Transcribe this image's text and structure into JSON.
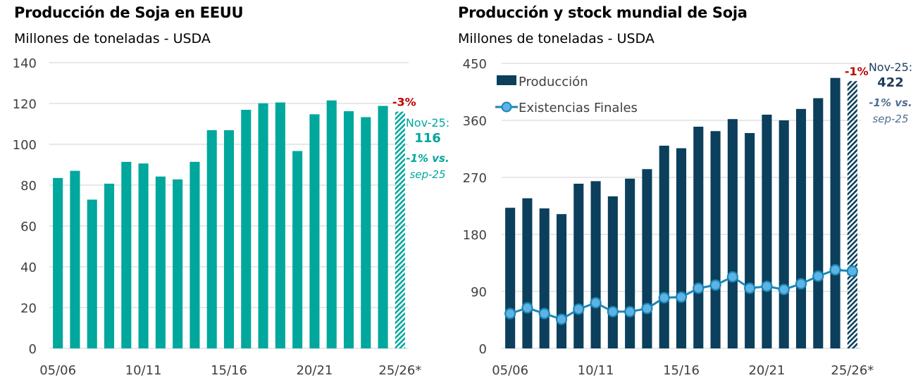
{
  "colors": {
    "us_bar": "#00A79D",
    "world_bar": "#0B3F5C",
    "stock_line": "#1A86B8",
    "stock_marker": "#5DB3E4",
    "negative": "#C00000",
    "grid": "#D9D9D9",
    "axis_text": "#404040",
    "world_note": "#4F6F93",
    "world_note_dark": "#1F3D5A"
  },
  "chart_data": [
    {
      "type": "bar",
      "title": "Producción de Soja en EEUU",
      "subtitle": "Millones de toneladas - USDA",
      "xlabel": "",
      "ylabel": "",
      "ylim": [
        0,
        140
      ],
      "yticks": [
        "0",
        "20",
        "40",
        "60",
        "80",
        "100",
        "120",
        "140"
      ],
      "ytick_values": [
        0,
        20,
        40,
        60,
        80,
        100,
        120,
        140
      ],
      "grid": true,
      "categories": [
        "05/06",
        "06/07",
        "07/08",
        "08/09",
        "09/10",
        "10/11",
        "11/12",
        "12/13",
        "13/14",
        "14/15",
        "15/16",
        "16/17",
        "17/18",
        "18/19",
        "19/20",
        "20/21",
        "21/22",
        "22/23",
        "23/24",
        "24/25",
        "25/26*"
      ],
      "xtick_labels": [
        "05/06",
        "10/11",
        "15/16",
        "20/21",
        "25/26*"
      ],
      "xtick_indices": [
        0,
        5,
        10,
        15,
        20
      ],
      "series": [
        {
          "name": "Producción",
          "values": [
            83.5,
            87.0,
            72.9,
            80.7,
            91.4,
            90.6,
            84.2,
            82.8,
            91.4,
            106.9,
            106.9,
            116.9,
            120.1,
            120.5,
            96.7,
            114.7,
            121.5,
            116.2,
            113.3,
            118.8,
            116.0
          ]
        }
      ],
      "projected_index": 20,
      "change_label": "-3%",
      "note": {
        "line1": "Nov-25:",
        "value": "116",
        "line3": "-1% vs.",
        "line4": "sep-25"
      }
    },
    {
      "type": "bar",
      "title": "Producción y stock mundial de Soja",
      "subtitle": "Millones de toneladas - USDA",
      "xlabel": "",
      "ylabel": "",
      "ylim": [
        0,
        450
      ],
      "yticks": [
        "0",
        "90",
        "180",
        "270",
        "360",
        "450"
      ],
      "ytick_values": [
        0,
        90,
        180,
        270,
        360,
        450
      ],
      "grid": true,
      "legend_position": "top-left",
      "categories": [
        "05/06",
        "06/07",
        "07/08",
        "08/09",
        "09/10",
        "10/11",
        "11/12",
        "12/13",
        "13/14",
        "14/15",
        "15/16",
        "16/17",
        "17/18",
        "18/19",
        "19/20",
        "20/21",
        "21/22",
        "22/23",
        "23/24",
        "24/25",
        "25/26*"
      ],
      "xtick_labels": [
        "05/06",
        "10/11",
        "15/16",
        "20/21",
        "25/26*"
      ],
      "xtick_indices": [
        0,
        5,
        10,
        15,
        20
      ],
      "series": [
        {
          "name": "Producción",
          "type": "bar",
          "values": [
            222,
            237,
            221,
            212,
            260,
            264,
            240,
            268,
            283,
            320,
            316,
            350,
            343,
            362,
            340,
            369,
            360,
            378,
            395,
            427,
            422
          ]
        },
        {
          "name": "Existencias  Finales",
          "type": "line",
          "values": [
            55,
            64,
            55,
            46,
            62,
            72,
            58,
            58,
            63,
            80,
            81,
            95,
            100,
            113,
            95,
            98,
            93,
            102,
            114,
            124,
            122
          ]
        }
      ],
      "projected_index": 20,
      "change_label": "-1%",
      "note": {
        "line1": "Nov-25:",
        "value": "422",
        "line3": "-1% vs.",
        "line4": "sep-25"
      }
    }
  ]
}
